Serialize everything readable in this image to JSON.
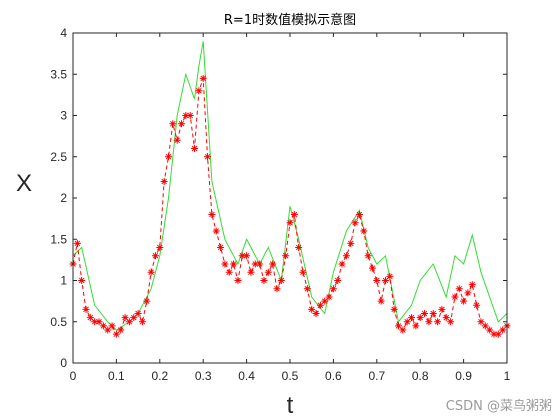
{
  "chart_data": {
    "type": "line",
    "title": "R=1时数值模拟示意图",
    "xlabel": "t",
    "ylabel": "X",
    "xlim": [
      0,
      1
    ],
    "ylim": [
      0,
      4
    ],
    "xticks": [
      "0",
      "0.1",
      "0.2",
      "0.3",
      "0.4",
      "0.5",
      "0.6",
      "0.7",
      "0.8",
      "0.9",
      "1"
    ],
    "yticks": [
      "0",
      "0.5",
      "1",
      "1.5",
      "2",
      "2.5",
      "3",
      "3.5",
      "4"
    ],
    "grid": false,
    "series": [
      {
        "style": "solid green line",
        "color": "#33dd33",
        "x": [
          0,
          0.02,
          0.05,
          0.08,
          0.1,
          0.13,
          0.15,
          0.18,
          0.2,
          0.22,
          0.24,
          0.26,
          0.28,
          0.29,
          0.3,
          0.32,
          0.35,
          0.38,
          0.4,
          0.43,
          0.45,
          0.48,
          0.5,
          0.52,
          0.55,
          0.58,
          0.6,
          0.63,
          0.66,
          0.68,
          0.7,
          0.72,
          0.75,
          0.78,
          0.8,
          0.83,
          0.86,
          0.88,
          0.9,
          0.92,
          0.94,
          0.96,
          0.98,
          1
        ],
        "values": [
          1.3,
          1.4,
          0.7,
          0.5,
          0.4,
          0.5,
          0.6,
          0.9,
          1.3,
          2.0,
          3.0,
          3.5,
          3.2,
          3.6,
          3.9,
          2.2,
          1.5,
          1.2,
          1.5,
          1.2,
          1.4,
          1.0,
          1.9,
          1.5,
          0.8,
          0.6,
          1.1,
          1.6,
          1.85,
          1.4,
          1.2,
          1.3,
          0.5,
          0.7,
          1.0,
          1.2,
          0.8,
          1.3,
          1.2,
          1.55,
          1.1,
          0.8,
          0.5,
          0.6
        ]
      },
      {
        "style": "dashed red line with asterisk markers",
        "color": "#ff0000",
        "x": [
          0,
          0.01,
          0.02,
          0.03,
          0.04,
          0.05,
          0.06,
          0.07,
          0.08,
          0.09,
          0.1,
          0.11,
          0.12,
          0.13,
          0.14,
          0.15,
          0.16,
          0.17,
          0.18,
          0.19,
          0.2,
          0.21,
          0.22,
          0.23,
          0.24,
          0.25,
          0.26,
          0.27,
          0.28,
          0.29,
          0.3,
          0.31,
          0.32,
          0.33,
          0.34,
          0.35,
          0.36,
          0.37,
          0.38,
          0.39,
          0.4,
          0.41,
          0.42,
          0.43,
          0.44,
          0.45,
          0.46,
          0.47,
          0.48,
          0.49,
          0.5,
          0.51,
          0.52,
          0.53,
          0.54,
          0.55,
          0.56,
          0.57,
          0.58,
          0.59,
          0.6,
          0.61,
          0.62,
          0.63,
          0.64,
          0.65,
          0.66,
          0.67,
          0.68,
          0.69,
          0.7,
          0.71,
          0.72,
          0.73,
          0.74,
          0.75,
          0.76,
          0.77,
          0.78,
          0.79,
          0.8,
          0.81,
          0.82,
          0.83,
          0.84,
          0.85,
          0.86,
          0.87,
          0.88,
          0.89,
          0.9,
          0.91,
          0.92,
          0.93,
          0.94,
          0.95,
          0.96,
          0.97,
          0.98,
          0.99,
          1
        ],
        "values": [
          1.2,
          1.45,
          1.0,
          0.65,
          0.55,
          0.5,
          0.5,
          0.45,
          0.4,
          0.45,
          0.35,
          0.4,
          0.55,
          0.5,
          0.55,
          0.6,
          0.5,
          0.75,
          1.1,
          1.3,
          1.4,
          2.2,
          2.5,
          2.9,
          2.7,
          2.9,
          3.0,
          3.0,
          2.6,
          3.3,
          3.45,
          2.5,
          1.8,
          1.6,
          1.4,
          1.2,
          1.1,
          1.2,
          1.0,
          1.3,
          1.3,
          1.1,
          1.2,
          1.2,
          1.0,
          1.1,
          1.2,
          0.9,
          1.0,
          1.3,
          1.7,
          1.8,
          1.4,
          1.1,
          0.9,
          0.65,
          0.6,
          0.7,
          0.75,
          0.8,
          0.9,
          1.0,
          1.2,
          1.3,
          1.45,
          1.7,
          1.8,
          1.6,
          1.3,
          1.15,
          1.0,
          0.75,
          1.0,
          1.05,
          0.65,
          0.45,
          0.4,
          0.5,
          0.55,
          0.45,
          0.55,
          0.6,
          0.5,
          0.6,
          0.5,
          0.65,
          0.55,
          0.5,
          0.8,
          0.9,
          0.75,
          0.85,
          0.95,
          0.7,
          0.5,
          0.45,
          0.4,
          0.35,
          0.35,
          0.4,
          0.45
        ]
      }
    ]
  },
  "watermark": "CSDN @菜鸟粥粥"
}
